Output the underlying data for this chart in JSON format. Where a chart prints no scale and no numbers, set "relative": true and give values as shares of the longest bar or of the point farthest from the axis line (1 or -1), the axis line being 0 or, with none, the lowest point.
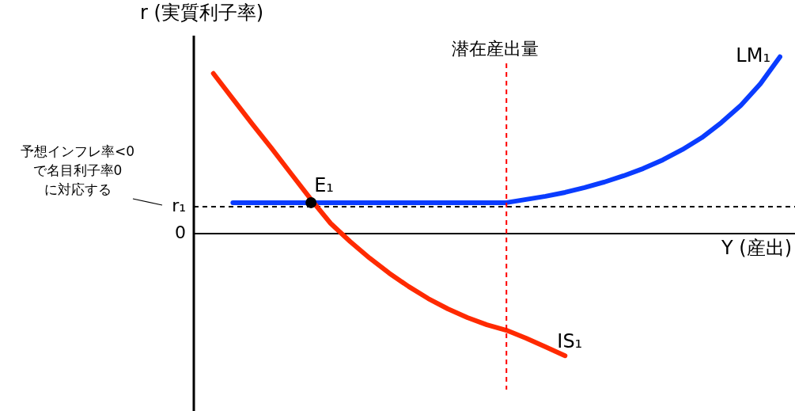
{
  "chart_data": {
    "type": "line",
    "relative": true,
    "xlabel": "Y (産出)",
    "ylabel": "r (実質利子率)",
    "legend": false,
    "grid": false,
    "categories": [
      null,
      null,
      null,
      null,
      null,
      null,
      null,
      null,
      null,
      null,
      null,
      null,
      null,
      null,
      null,
      null,
      null,
      null,
      null,
      null,
      null,
      null,
      null,
      null,
      null,
      null,
      null,
      null,
      null,
      null,
      null
    ],
    "series": [
      {
        "name": "IS₁",
        "color": "#ff2a00",
        "values": [
          null,
          0.906,
          0.762,
          0.619,
          0.48,
          0.336,
          0.193,
          0.058,
          -0.045,
          -0.139,
          -0.224,
          -0.3,
          -0.368,
          -0.426,
          -0.475,
          -0.516,
          -0.547,
          -0.592,
          -0.641,
          -0.691,
          null,
          null,
          null,
          null,
          null,
          null,
          null,
          null,
          null,
          null,
          null
        ]
      },
      {
        "name": "LM₁",
        "color": "#0a3cff",
        "values": [
          null,
          null,
          0.175,
          0.175,
          0.175,
          0.175,
          0.175,
          0.175,
          0.175,
          0.175,
          0.175,
          0.175,
          0.175,
          0.175,
          0.175,
          0.175,
          0.175,
          0.193,
          0.211,
          0.233,
          0.26,
          0.291,
          0.327,
          0.368,
          0.417,
          0.475,
          0.543,
          0.628,
          0.726,
          0.848,
          1
        ]
      }
    ],
    "ref_lines": [
      {
        "axis": "y",
        "value": 0.152,
        "label": "r₁",
        "color": "#000000",
        "line_style": "dashed"
      }
    ],
    "annotations": [
      {
        "text": "E₁",
        "y": 0.175
      },
      "潜在産出量",
      "0",
      "予想インフレ率<0\nで名目利子率0\nに対応する"
    ]
  }
}
